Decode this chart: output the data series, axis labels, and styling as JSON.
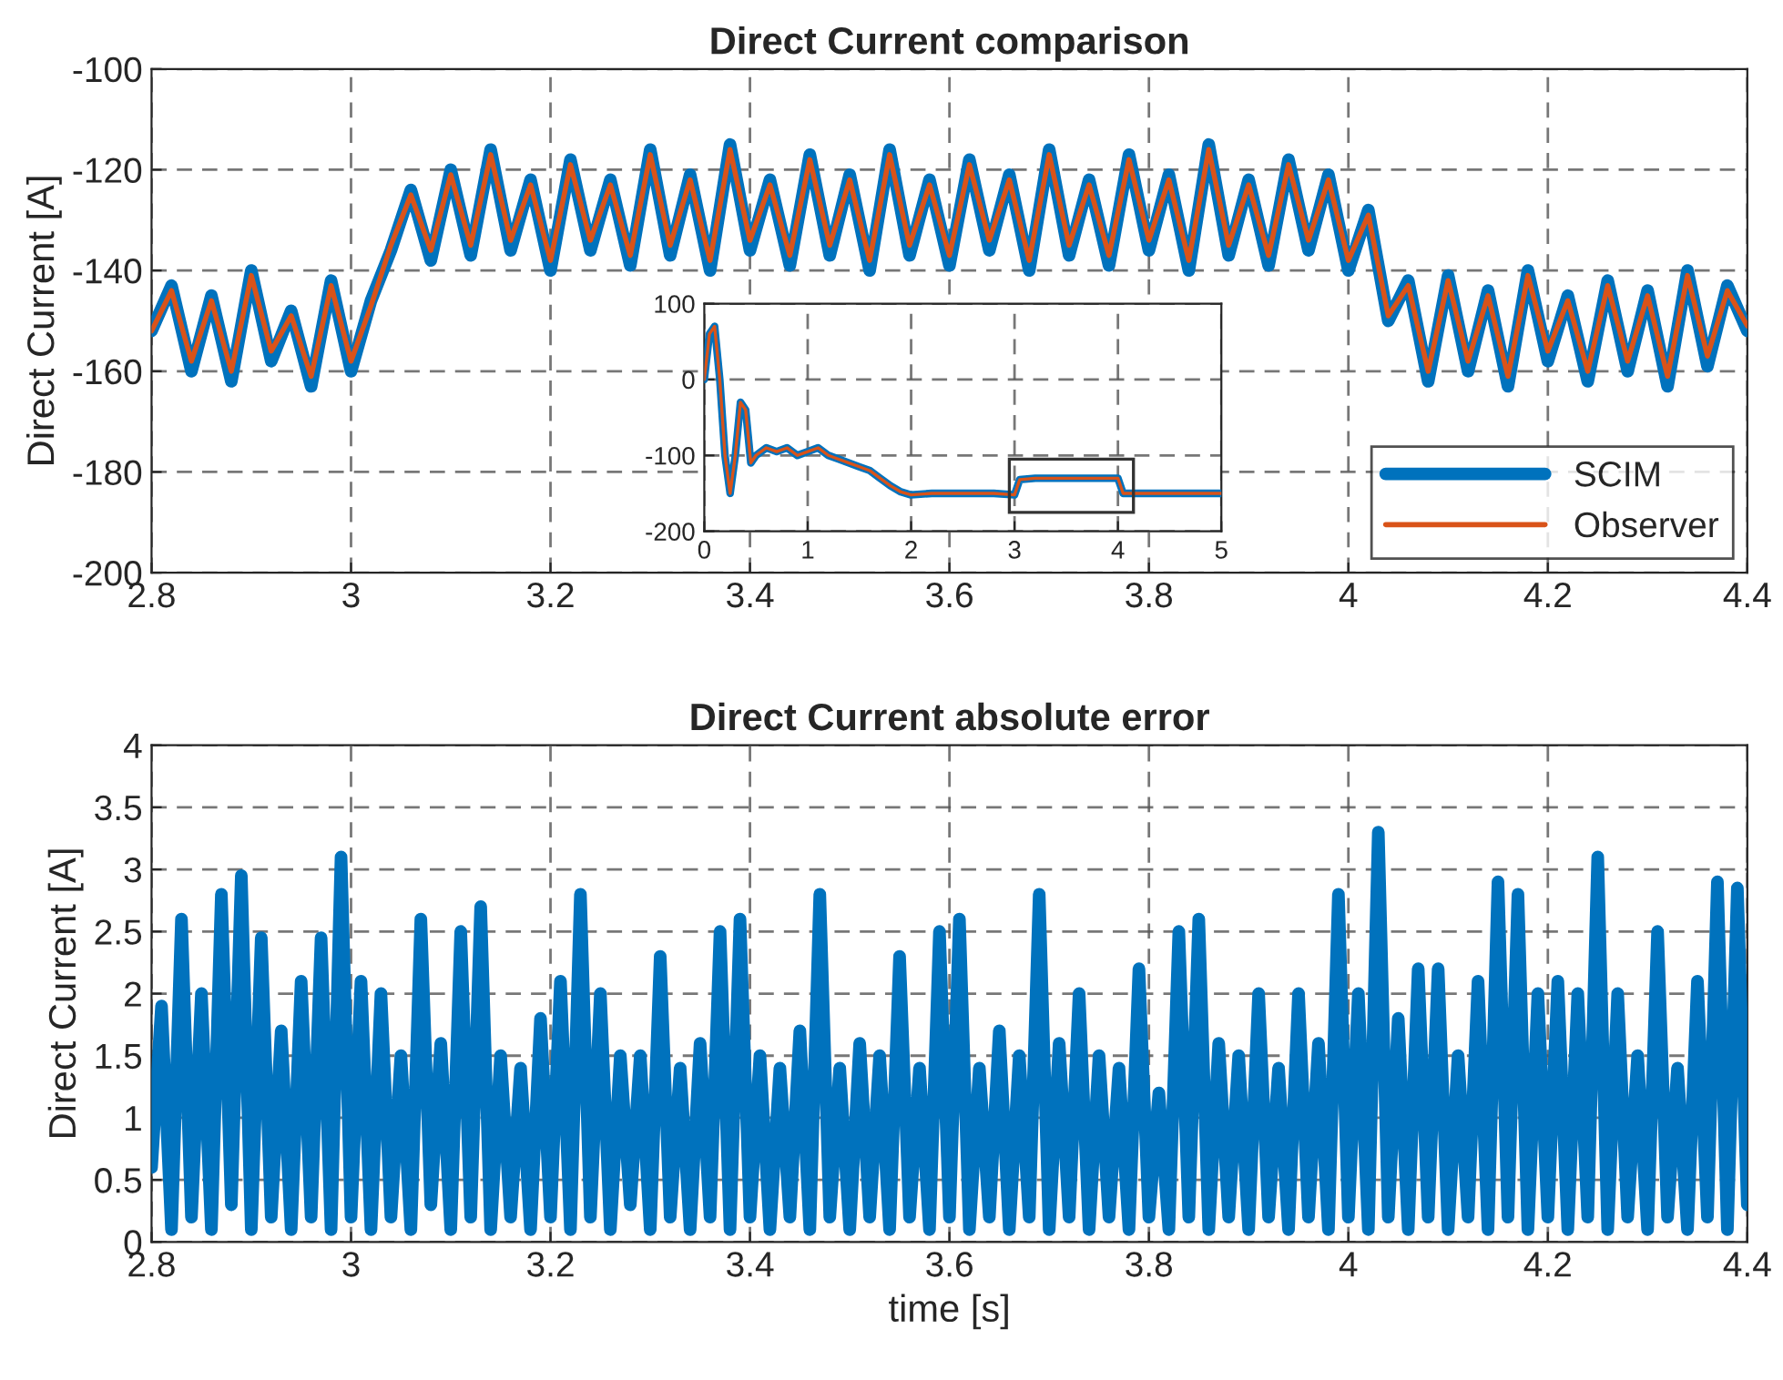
{
  "chart_data": [
    {
      "type": "line",
      "title": "Direct Current comparison",
      "ylabel": "Direct Current [A]",
      "xlim": [
        2.8,
        4.4
      ],
      "xticks": [
        2.8,
        3,
        3.2,
        3.4,
        3.6,
        3.8,
        4,
        4.2,
        4.4
      ],
      "ylim": [
        -200,
        -100
      ],
      "yticks": [
        -200,
        -180,
        -160,
        -140,
        -120,
        -100
      ],
      "grid": true,
      "legend": "bottom right",
      "line_style": "solid",
      "x": [
        2.8,
        2.82,
        2.84,
        2.86,
        2.88,
        2.9,
        2.92,
        2.94,
        2.96,
        2.98,
        3.0,
        3.02,
        3.04,
        3.06,
        3.08,
        3.1,
        3.12,
        3.14,
        3.16,
        3.18,
        3.2,
        3.22,
        3.24,
        3.26,
        3.28,
        3.3,
        3.32,
        3.34,
        3.36,
        3.38,
        3.4,
        3.42,
        3.44,
        3.46,
        3.48,
        3.5,
        3.52,
        3.54,
        3.56,
        3.58,
        3.6,
        3.62,
        3.64,
        3.66,
        3.68,
        3.7,
        3.72,
        3.74,
        3.76,
        3.78,
        3.8,
        3.82,
        3.84,
        3.86,
        3.88,
        3.9,
        3.92,
        3.94,
        3.96,
        3.98,
        4.0,
        4.02,
        4.04,
        4.06,
        4.08,
        4.1,
        4.12,
        4.14,
        4.16,
        4.18,
        4.2,
        4.22,
        4.24,
        4.26,
        4.28,
        4.3,
        4.32,
        4.34,
        4.36,
        4.38,
        4.4
      ],
      "series": [
        {
          "name": "SCIM",
          "color": "#0072bd",
          "values": [
            -152,
            -143,
            -160,
            -145,
            -162,
            -140,
            -158,
            -148,
            -163,
            -142,
            -160,
            -146,
            -136,
            -124,
            -138,
            -120,
            -137,
            -116,
            -136,
            -122,
            -140,
            -118,
            -136,
            -122,
            -139,
            -116,
            -137,
            -121,
            -140,
            -115,
            -136,
            -122,
            -139,
            -117,
            -137,
            -121,
            -140,
            -116,
            -137,
            -122,
            -139,
            -118,
            -136,
            -121,
            -140,
            -116,
            -137,
            -122,
            -139,
            -117,
            -136,
            -121,
            -140,
            -115,
            -137,
            -122,
            -139,
            -118,
            -136,
            -121,
            -140,
            -128,
            -150,
            -142,
            -162,
            -141,
            -160,
            -144,
            -163,
            -140,
            -158,
            -145,
            -162,
            -142,
            -160,
            -144,
            -163,
            -140,
            -159,
            -143,
            -152
          ]
        },
        {
          "name": "Observer",
          "color": "#d95319",
          "values": [
            -152,
            -144,
            -158,
            -146,
            -160,
            -141,
            -156,
            -149,
            -161,
            -143,
            -158,
            -147,
            -135,
            -125,
            -136,
            -121,
            -135,
            -117,
            -134,
            -123,
            -138,
            -119,
            -134,
            -123,
            -137,
            -117,
            -135,
            -122,
            -138,
            -116,
            -134,
            -123,
            -137,
            -118,
            -135,
            -122,
            -138,
            -117,
            -135,
            -123,
            -137,
            -119,
            -134,
            -122,
            -138,
            -117,
            -135,
            -123,
            -137,
            -118,
            -134,
            -122,
            -138,
            -116,
            -135,
            -123,
            -137,
            -119,
            -134,
            -122,
            -138,
            -129,
            -149,
            -143,
            -160,
            -142,
            -158,
            -145,
            -161,
            -141,
            -156,
            -146,
            -160,
            -143,
            -158,
            -145,
            -161,
            -141,
            -157,
            -144,
            -151
          ]
        }
      ]
    },
    {
      "type": "line",
      "xlim": [
        0,
        5
      ],
      "xticks": [
        0,
        1,
        2,
        3,
        4,
        5
      ],
      "ylim": [
        -200,
        100
      ],
      "yticks": [
        -200,
        -100,
        0,
        100
      ],
      "grid": true,
      "line_style": "solid",
      "x": [
        0,
        0.05,
        0.1,
        0.15,
        0.2,
        0.25,
        0.3,
        0.35,
        0.4,
        0.45,
        0.5,
        0.6,
        0.7,
        0.8,
        0.9,
        1.0,
        1.1,
        1.2,
        1.3,
        1.4,
        1.5,
        1.6,
        1.7,
        1.8,
        1.9,
        2.0,
        2.2,
        2.4,
        2.6,
        2.8,
        3.0,
        3.05,
        3.2,
        3.4,
        3.6,
        3.8,
        4.0,
        4.05,
        4.2,
        4.4,
        4.6,
        4.8,
        5.0
      ],
      "series": [
        {
          "color": "#0072bd",
          "values": [
            0,
            60,
            70,
            0,
            -100,
            -150,
            -100,
            -30,
            -40,
            -110,
            -100,
            -90,
            -95,
            -90,
            -100,
            -95,
            -90,
            -100,
            -105,
            -110,
            -115,
            -120,
            -130,
            -140,
            -148,
            -152,
            -150,
            -150,
            -150,
            -150,
            -152,
            -132,
            -130,
            -130,
            -130,
            -130,
            -130,
            -150,
            -150,
            -150,
            -150,
            -150,
            -150
          ]
        },
        {
          "color": "#d95319",
          "values": [
            0,
            60,
            70,
            0,
            -100,
            -150,
            -100,
            -30,
            -40,
            -110,
            -100,
            -90,
            -95,
            -90,
            -100,
            -95,
            -90,
            -100,
            -105,
            -110,
            -115,
            -120,
            -130,
            -140,
            -148,
            -152,
            -150,
            -150,
            -150,
            -150,
            -152,
            -132,
            -130,
            -130,
            -130,
            -130,
            -130,
            -150,
            -150,
            -150,
            -150,
            -150,
            -150
          ]
        }
      ]
    },
    {
      "type": "line",
      "title": "Direct Current absolute error",
      "xlabel": "time [s]",
      "ylabel": "Direct Current [A]",
      "xlim": [
        2.8,
        4.4
      ],
      "xticks": [
        2.8,
        3,
        3.2,
        3.4,
        3.6,
        3.8,
        4,
        4.2,
        4.4
      ],
      "ylim": [
        0,
        4
      ],
      "yticks": [
        0,
        0.5,
        1,
        1.5,
        2,
        2.5,
        3,
        3.5,
        4
      ],
      "grid": true,
      "line_style": "solid",
      "x": [
        2.8,
        2.81,
        2.82,
        2.83,
        2.84,
        2.85,
        2.86,
        2.87,
        2.88,
        2.89,
        2.9,
        2.91,
        2.92,
        2.93,
        2.94,
        2.95,
        2.96,
        2.97,
        2.98,
        2.99,
        3.0,
        3.01,
        3.02,
        3.03,
        3.04,
        3.05,
        3.06,
        3.07,
        3.08,
        3.09,
        3.1,
        3.11,
        3.12,
        3.13,
        3.14,
        3.15,
        3.16,
        3.17,
        3.18,
        3.19,
        3.2,
        3.21,
        3.22,
        3.23,
        3.24,
        3.25,
        3.26,
        3.27,
        3.28,
        3.29,
        3.3,
        3.31,
        3.32,
        3.33,
        3.34,
        3.35,
        3.36,
        3.37,
        3.38,
        3.39,
        3.4,
        3.41,
        3.42,
        3.43,
        3.44,
        3.45,
        3.46,
        3.47,
        3.48,
        3.49,
        3.5,
        3.51,
        3.52,
        3.53,
        3.54,
        3.55,
        3.56,
        3.57,
        3.58,
        3.59,
        3.6,
        3.61,
        3.62,
        3.63,
        3.64,
        3.65,
        3.66,
        3.67,
        3.68,
        3.69,
        3.7,
        3.71,
        3.72,
        3.73,
        3.74,
        3.75,
        3.76,
        3.77,
        3.78,
        3.79,
        3.8,
        3.81,
        3.82,
        3.83,
        3.84,
        3.85,
        3.86,
        3.87,
        3.88,
        3.89,
        3.9,
        3.91,
        3.92,
        3.93,
        3.94,
        3.95,
        3.96,
        3.97,
        3.98,
        3.99,
        4.0,
        4.01,
        4.02,
        4.03,
        4.04,
        4.05,
        4.06,
        4.07,
        4.08,
        4.09,
        4.1,
        4.11,
        4.12,
        4.13,
        4.14,
        4.15,
        4.16,
        4.17,
        4.18,
        4.19,
        4.2,
        4.21,
        4.22,
        4.23,
        4.24,
        4.25,
        4.26,
        4.27,
        4.28,
        4.29,
        4.3,
        4.31,
        4.32,
        4.33,
        4.34,
        4.35,
        4.36,
        4.37,
        4.38,
        4.39,
        4.4
      ],
      "series": [
        {
          "color": "#0072bd",
          "values": [
            0.6,
            1.9,
            0.1,
            2.6,
            0.2,
            2.0,
            0.1,
            2.8,
            0.3,
            2.95,
            0.1,
            2.45,
            0.2,
            1.7,
            0.1,
            2.1,
            0.2,
            2.45,
            0.1,
            3.1,
            0.2,
            2.1,
            0.1,
            2.0,
            0.2,
            1.5,
            0.1,
            2.6,
            0.3,
            1.6,
            0.1,
            2.5,
            0.2,
            2.7,
            0.1,
            1.5,
            0.2,
            1.4,
            0.1,
            1.8,
            0.2,
            2.1,
            0.1,
            2.8,
            0.2,
            2.0,
            0.1,
            1.5,
            0.3,
            1.5,
            0.1,
            2.3,
            0.2,
            1.4,
            0.1,
            1.6,
            0.2,
            2.5,
            0.1,
            2.6,
            0.2,
            1.5,
            0.1,
            1.4,
            0.2,
            1.7,
            0.1,
            2.8,
            0.2,
            1.4,
            0.1,
            1.6,
            0.2,
            1.5,
            0.1,
            2.3,
            0.2,
            1.4,
            0.1,
            2.5,
            0.2,
            2.6,
            0.1,
            1.4,
            0.2,
            1.7,
            0.1,
            1.5,
            0.2,
            2.8,
            0.1,
            1.6,
            0.2,
            2.0,
            0.1,
            1.5,
            0.2,
            1.4,
            0.1,
            2.2,
            0.2,
            1.2,
            0.1,
            2.5,
            0.2,
            2.6,
            0.1,
            1.6,
            0.2,
            1.5,
            0.1,
            2.0,
            0.2,
            1.4,
            0.1,
            2.0,
            0.2,
            1.6,
            0.1,
            2.8,
            0.2,
            2.0,
            0.1,
            3.3,
            0.2,
            1.8,
            0.1,
            2.2,
            0.2,
            2.2,
            0.1,
            1.5,
            0.2,
            2.1,
            0.1,
            2.9,
            0.2,
            2.8,
            0.1,
            2.0,
            0.2,
            2.1,
            0.1,
            2.0,
            0.2,
            3.1,
            0.1,
            2.0,
            0.2,
            1.5,
            0.1,
            2.5,
            0.2,
            1.4,
            0.1,
            2.1,
            0.2,
            2.9,
            0.1,
            2.85,
            0.3
          ]
        }
      ]
    }
  ]
}
